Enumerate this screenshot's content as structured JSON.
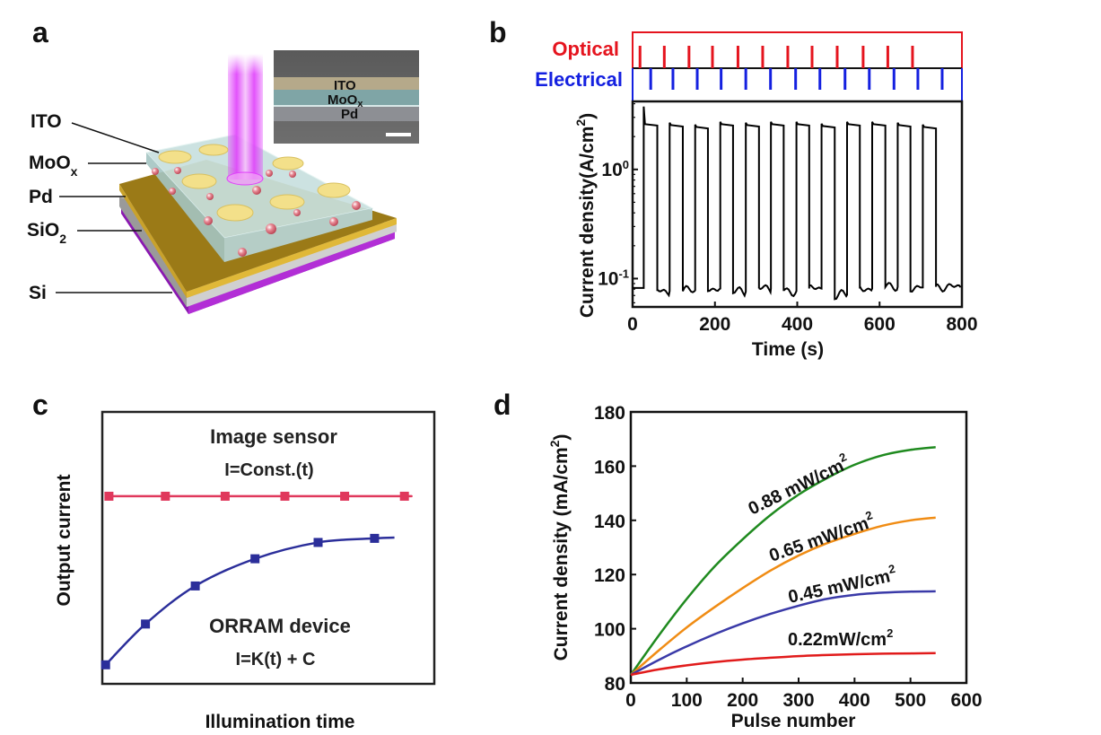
{
  "figure": {
    "panels": {
      "a": {
        "letter": "a",
        "layers": [
          {
            "name": "ITO",
            "sub": ""
          },
          {
            "name": "MoO",
            "sub": "x"
          },
          {
            "name": "Pd",
            "sub": ""
          },
          {
            "name": "SiO",
            "sub": "2"
          },
          {
            "name": "Si",
            "sub": ""
          }
        ],
        "inset": {
          "labels": [
            "ITO",
            "MoO",
            "Pd"
          ],
          "moox_sub": "x"
        },
        "colors": {
          "light": "#e040fb",
          "pd": "#b8901c",
          "sio2": "#b5b5b5",
          "si": "#9c1fc0",
          "moox": "#bcd8d8",
          "ito": "#f3e08a",
          "particle": "#d9606e"
        }
      },
      "b": {
        "letter": "b"
      },
      "c": {
        "letter": "c"
      },
      "d": {
        "letter": "d"
      }
    }
  },
  "chart_data": [
    {
      "panel": "b",
      "type": "line",
      "title": "",
      "xlabel": "Time (s)",
      "ylabel": "Current density(A/cm",
      "ylabel_sup": "2",
      "ylabel_close": ")",
      "yscale": "log",
      "xlim": [
        0,
        800
      ],
      "ylim": [
        0.055,
        4.2
      ],
      "xticks": [
        0,
        200,
        400,
        600,
        800
      ],
      "yticks": [
        {
          "value": 0.1,
          "base": "10",
          "exp": "-1"
        },
        {
          "value": 1,
          "base": "10",
          "exp": "0"
        }
      ],
      "pulse_rows": [
        {
          "label": "Optical",
          "color": "#e5141e",
          "pulse_times": [
            18,
            77,
            137,
            194,
            256,
            316,
            377,
            436,
            497,
            560,
            620,
            680
          ]
        },
        {
          "label": "Electrical",
          "color": "#1420e0",
          "pulse_times": [
            44,
            98,
            157,
            215,
            275,
            335,
            396,
            455,
            516,
            575,
            635,
            693,
            752
          ]
        }
      ],
      "series": [
        {
          "name": "Current density",
          "color": "#000000",
          "on_intervals": [
            [
              27,
              60
            ],
            [
              90,
              122
            ],
            [
              152,
              183
            ],
            [
              213,
              244
            ],
            [
              275,
              307
            ],
            [
              336,
              367
            ],
            [
              398,
              429
            ],
            [
              459,
              491
            ],
            [
              521,
              552
            ],
            [
              582,
              614
            ],
            [
              644,
              675
            ],
            [
              705,
              737
            ]
          ],
          "high_values": [
            2.6,
            2.55,
            2.45,
            2.6,
            2.55,
            2.6,
            2.6,
            2.5,
            2.6,
            2.6,
            2.55,
            2.45
          ],
          "low_values": [
            0.082,
            0.077,
            0.078,
            0.081,
            0.076,
            0.081,
            0.077,
            0.081,
            0.071,
            0.081,
            0.084,
            0.083,
            0.084
          ]
        }
      ]
    },
    {
      "panel": "c",
      "type": "line",
      "title": "",
      "xlabel": "Illumination time",
      "ylabel": "Output current",
      "annotations": [
        {
          "text": "Image sensor",
          "target": "Image sensor"
        },
        {
          "text": "I=Const.(t)",
          "target": "Image sensor"
        },
        {
          "text": "ORRAM device",
          "target": "ORRAM device"
        },
        {
          "text": "I=K(t) + C",
          "target": "ORRAM device"
        }
      ],
      "xlim": [
        0,
        10
      ],
      "ylim": [
        0,
        10
      ],
      "series": [
        {
          "name": "Image sensor",
          "color": "#e0385c",
          "x": [
            0.2,
            1.9,
            3.7,
            5.5,
            7.3,
            9.1
          ],
          "y": [
            6.9,
            6.9,
            6.9,
            6.9,
            6.9,
            6.9
          ],
          "x_end": 9.3
        },
        {
          "name": "ORRAM device",
          "color": "#2b2e9a",
          "x": [
            0.1,
            1.3,
            2.8,
            4.6,
            6.5,
            8.2
          ],
          "y": [
            0.7,
            2.2,
            3.6,
            4.6,
            5.2,
            5.35
          ],
          "x_end": 8.8
        }
      ]
    },
    {
      "panel": "d",
      "type": "line",
      "title": "",
      "xlabel": "Pulse number",
      "ylabel": "Current density (mA/cm",
      "ylabel_sup": "2",
      "ylabel_close": ")",
      "xlim": [
        0,
        600
      ],
      "ylim": [
        80,
        180
      ],
      "xticks": [
        0,
        100,
        200,
        300,
        400,
        500,
        600
      ],
      "yticks": [
        80,
        100,
        120,
        140,
        160,
        180
      ],
      "series": [
        {
          "name": "0.88 mW/cm",
          "sup": "2",
          "color": "#1f8a1f",
          "x": [
            0,
            50,
            100,
            150,
            200,
            250,
            300,
            350,
            400,
            450,
            500,
            545
          ],
          "y": [
            83,
            97.5,
            111,
            123,
            133,
            142,
            149.5,
            155.5,
            160.5,
            164,
            166,
            167
          ]
        },
        {
          "name": "0.65 mW/cm",
          "sup": "2",
          "color": "#f08c14",
          "x": [
            0,
            50,
            100,
            150,
            200,
            250,
            300,
            350,
            400,
            450,
            500,
            545
          ],
          "y": [
            83,
            92,
            100.5,
            108,
            115,
            121.5,
            127,
            131.5,
            135,
            138,
            140,
            141
          ]
        },
        {
          "name": "0.45 mW/cm",
          "sup": "2",
          "color": "#3a3aa8",
          "x": [
            0,
            50,
            100,
            150,
            200,
            250,
            300,
            350,
            400,
            450,
            500,
            545
          ],
          "y": [
            83,
            88.5,
            93.5,
            98,
            102,
            105.5,
            108.5,
            111,
            112.5,
            113.3,
            113.7,
            113.8
          ]
        },
        {
          "name": "0.22mW/cm",
          "sup": "2",
          "color": "#e11b1b",
          "x": [
            0,
            50,
            100,
            150,
            200,
            250,
            300,
            350,
            400,
            450,
            500,
            545
          ],
          "y": [
            83,
            85,
            86.5,
            87.7,
            88.6,
            89.3,
            89.9,
            90.3,
            90.6,
            90.8,
            90.9,
            91
          ]
        }
      ]
    }
  ]
}
